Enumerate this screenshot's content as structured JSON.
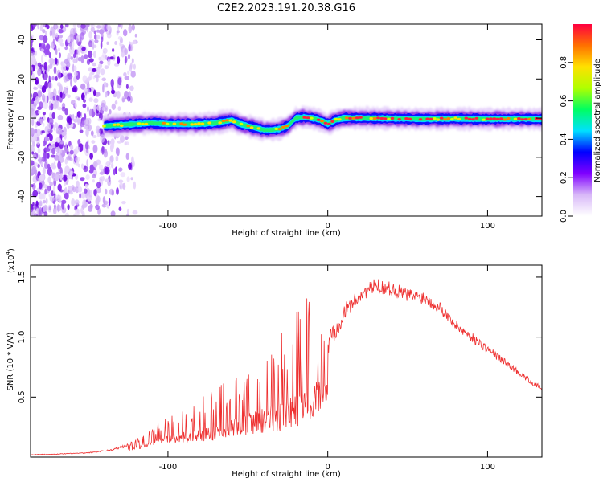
{
  "figure": {
    "title": "C2E2.2023.191.20.38.G16"
  },
  "chart_data": [
    {
      "type": "heatmap",
      "xlabel": "Height of straight line (km)",
      "ylabel": "Frequency (Hz)",
      "xlim": [
        -186,
        134
      ],
      "ylim": [
        -50,
        48
      ],
      "xticks": [
        -100,
        0,
        100
      ],
      "xtick_labels": [
        "-100",
        "0",
        "100"
      ],
      "yticks": [
        -40,
        -20,
        0,
        20,
        40
      ],
      "ytick_labels": [
        "-40",
        "-20",
        "0",
        "20",
        "40"
      ],
      "colorbar": {
        "label": "Normalized spectral amplitude",
        "range": [
          0,
          1
        ],
        "ticks": [
          0.0,
          0.2,
          0.4,
          0.6,
          0.8
        ],
        "tick_labels": [
          "0.0",
          "0.2",
          "0.4",
          "0.6",
          "0.8"
        ],
        "colormap": [
          "#ffffff",
          "#d8b8f8",
          "#8000ff",
          "#0000ff",
          "#00e0ff",
          "#00ff60",
          "#b0ff00",
          "#ffe000",
          "#ff7000",
          "#ff0040"
        ]
      },
      "noise_region": {
        "x_range": [
          -186,
          -120
        ],
        "freq_range": [
          -50,
          48
        ]
      },
      "ridge": {
        "x": [
          -140,
          -130,
          -120,
          -110,
          -100,
          -90,
          -80,
          -70,
          -60,
          -55,
          -50,
          -45,
          -40,
          -35,
          -30,
          -25,
          -20,
          -15,
          -10,
          -5,
          0,
          5,
          10,
          20,
          40,
          60,
          80,
          100,
          120,
          134
        ],
        "freq": [
          -4,
          -3.5,
          -3,
          -2.5,
          -3,
          -3,
          -3,
          -2.5,
          -1,
          -3,
          -4,
          -5,
          -6,
          -6,
          -5.5,
          -4,
          0,
          0.5,
          0,
          -1,
          -3,
          -1,
          0,
          0,
          -0.2,
          -0.5,
          -0.3,
          -0.5,
          -0.4,
          -0.5
        ]
      }
    },
    {
      "type": "line",
      "xlabel": "Height of straight line (km)",
      "ylabel": "SNR (10 * V/V)",
      "scale_label": "(x10",
      "scale_exp": "4",
      "scale_close": ")",
      "xlim": [
        -186,
        134
      ],
      "ylim": [
        0,
        16000
      ],
      "xticks": [
        -100,
        0,
        100
      ],
      "xtick_labels": [
        "-100",
        "0",
        "100"
      ],
      "yticks": [
        5000,
        10000,
        15000
      ],
      "ytick_labels": [
        "0.5",
        "1.0",
        "1.5"
      ],
      "series": [
        {
          "color": "#ee3030",
          "x": [
            -186,
            -170,
            -150,
            -135,
            -125,
            -115,
            -110,
            -100,
            -90,
            -80,
            -70,
            -60,
            -50,
            -40,
            -30,
            -20,
            -10,
            -5,
            0,
            10,
            20,
            30,
            40,
            50,
            60,
            70,
            80,
            90,
            100,
            110,
            120,
            130,
            134
          ],
          "y": [
            200,
            250,
            350,
            600,
            1000,
            1600,
            2000,
            2400,
            2700,
            3000,
            3400,
            4000,
            4400,
            5000,
            5400,
            6000,
            7000,
            8500,
            9500,
            12000,
            13500,
            14300,
            14000,
            13500,
            13300,
            12500,
            11000,
            10000,
            9000,
            8000,
            7000,
            6000,
            5800
          ],
          "noise_amplitude": [
            50,
            60,
            80,
            150,
            300,
            600,
            800,
            1200,
            1500,
            1800,
            2200,
            2600,
            3000,
            3600,
            4200,
            5000,
            5500,
            4500,
            2500,
            1500,
            1200,
            1200,
            1200,
            1200,
            1100,
            1000,
            900,
            800,
            700,
            600,
            500,
            400,
            400
          ]
        }
      ]
    }
  ]
}
